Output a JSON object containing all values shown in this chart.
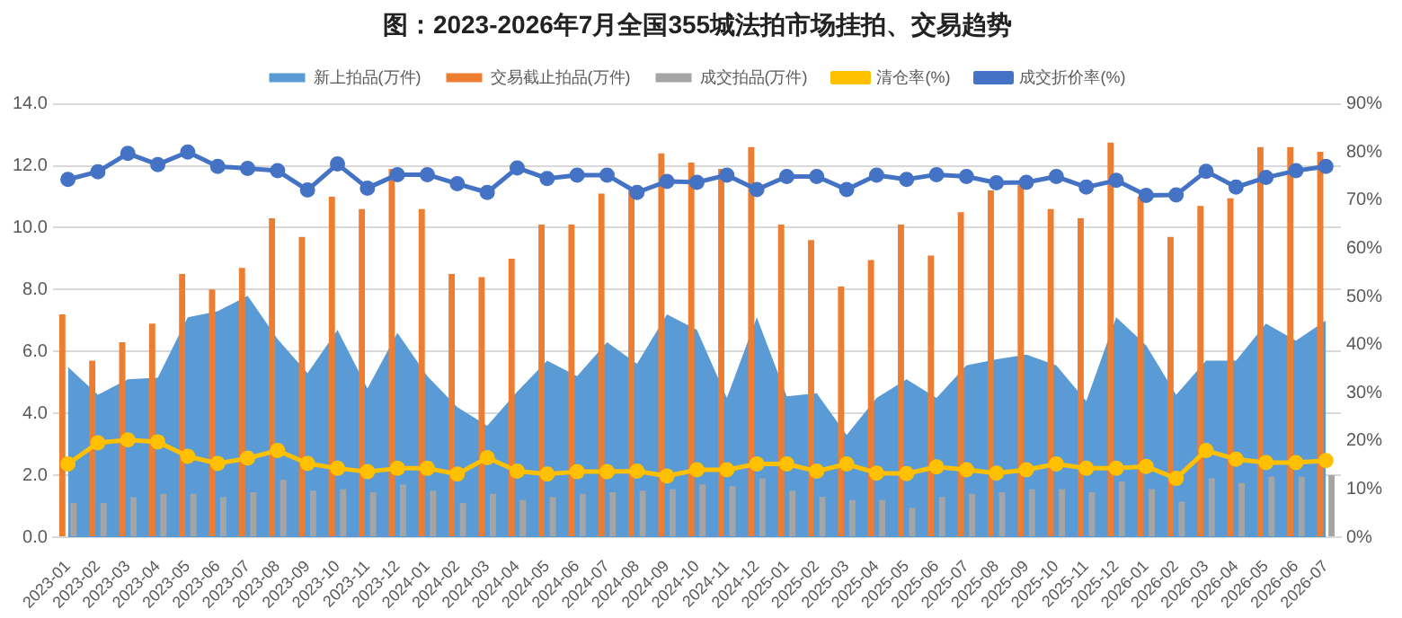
{
  "chart_data": {
    "type": "bar",
    "title": "图：2023-2026年7月全国355城法拍市场挂拍、交易趋势",
    "categories": [
      "2023-01",
      "2023-02",
      "2023-03",
      "2023-04",
      "2023-05",
      "2023-06",
      "2023-07",
      "2023-08",
      "2023-09",
      "2023-10",
      "2023-11",
      "2023-12",
      "2024-01",
      "2024-02",
      "2024-03",
      "2024-04",
      "2024-05",
      "2024-06",
      "2024-07",
      "2024-08",
      "2024-09",
      "2024-10",
      "2024-11",
      "2024-12",
      "2025-01",
      "2025-02",
      "2025-03",
      "2025-04",
      "2025-05",
      "2025-06",
      "2025-07",
      "2025-08",
      "2025-09",
      "2025-10",
      "2025-11",
      "2025-12",
      "2026-01",
      "2026-02",
      "2026-03",
      "2026-04",
      "2026-05",
      "2026-06",
      "2026-07"
    ],
    "series": [
      {
        "name": "新上拍品(万件)",
        "type": "area",
        "color": "#5b9bd5",
        "values": [
          5.5,
          4.6,
          5.1,
          5.15,
          7.1,
          7.3,
          7.8,
          6.4,
          5.3,
          6.7,
          4.8,
          6.6,
          5.2,
          4.2,
          3.6,
          4.7,
          5.7,
          5.2,
          6.3,
          5.6,
          7.2,
          6.7,
          4.5,
          7.1,
          4.55,
          4.65,
          3.3,
          4.5,
          5.1,
          4.5,
          5.55,
          5.75,
          5.9,
          5.55,
          4.4,
          7.1,
          6.2,
          4.6,
          5.7,
          5.7,
          6.9,
          6.35,
          7.0
        ]
      },
      {
        "name": "交易截止拍品(万件)",
        "color": "#ed7d31",
        "values": [
          7.2,
          5.7,
          6.3,
          6.9,
          8.5,
          8.0,
          8.7,
          10.3,
          9.7,
          11.0,
          10.6,
          11.9,
          10.6,
          8.5,
          8.4,
          9.0,
          10.1,
          10.1,
          11.1,
          11.2,
          12.4,
          12.1,
          11.9,
          12.6,
          10.1,
          9.6,
          8.1,
          8.95,
          10.1,
          9.1,
          10.5,
          11.2,
          11.4,
          10.6,
          10.3,
          12.75,
          11.0,
          9.7,
          10.7,
          10.95,
          12.6,
          12.6,
          12.45
        ]
      },
      {
        "name": "成交拍品(万件)",
        "color": "#a5a5a5",
        "values": [
          1.1,
          1.1,
          1.3,
          1.4,
          1.4,
          1.3,
          1.45,
          1.85,
          1.5,
          1.55,
          1.45,
          1.7,
          1.5,
          1.1,
          1.4,
          1.2,
          1.3,
          1.4,
          1.45,
          1.5,
          1.55,
          1.7,
          1.65,
          1.9,
          1.5,
          1.3,
          1.2,
          1.2,
          0.95,
          1.3,
          1.4,
          1.45,
          1.55,
          1.55,
          1.45,
          1.8,
          1.55,
          1.15,
          1.9,
          1.75,
          1.95,
          1.95,
          2.0
        ]
      },
      {
        "name": "清仓率(%)",
        "type": "line",
        "axis": "y2",
        "marker": "circle",
        "color": "#ffc000",
        "values": [
          15.2,
          19.6,
          20.2,
          19.8,
          16.8,
          15.3,
          16.4,
          18.0,
          15.3,
          14.3,
          13.6,
          14.3,
          14.3,
          13.1,
          16.5,
          13.7,
          13.1,
          13.6,
          13.6,
          13.7,
          12.7,
          14.0,
          14.0,
          15.2,
          15.2,
          13.7,
          15.2,
          13.3,
          13.2,
          14.6,
          14.0,
          13.3,
          14.0,
          15.2,
          14.3,
          14.3,
          14.7,
          12.2,
          18.0,
          16.2,
          15.5,
          15.5,
          15.9
        ]
      },
      {
        "name": "成交折价率(%)",
        "type": "line",
        "axis": "y2",
        "marker": "circle",
        "color": "#4472c4",
        "values": [
          74.3,
          75.9,
          79.7,
          77.4,
          80.0,
          77.0,
          76.6,
          76.1,
          72.1,
          77.5,
          72.5,
          75.3,
          75.3,
          73.4,
          71.6,
          76.7,
          74.5,
          75.2,
          75.2,
          71.6,
          73.9,
          73.7,
          75.2,
          72.2,
          74.9,
          74.9,
          72.2,
          75.2,
          74.3,
          75.3,
          74.9,
          73.6,
          73.7,
          74.9,
          72.7,
          74.1,
          71.0,
          71.1,
          76.0,
          72.7,
          74.7,
          76.1,
          77.0
        ]
      }
    ],
    "ylim": [
      0,
      14
    ],
    "yticks": [
      {
        "value": 0,
        "label": "0.0"
      },
      {
        "value": 2,
        "label": "2.0"
      },
      {
        "value": 4,
        "label": "4.0"
      },
      {
        "value": 6,
        "label": "6.0"
      },
      {
        "value": 8,
        "label": "8.0"
      },
      {
        "value": 10,
        "label": "10.0"
      },
      {
        "value": 12,
        "label": "12.0"
      },
      {
        "value": 14,
        "label": "14.0"
      }
    ],
    "y2lim": [
      0,
      90
    ],
    "y2ticks": [
      {
        "value": 0,
        "label": "0%"
      },
      {
        "value": 10,
        "label": "10%"
      },
      {
        "value": 20,
        "label": "20%"
      },
      {
        "value": 30,
        "label": "30%"
      },
      {
        "value": 40,
        "label": "40%"
      },
      {
        "value": 50,
        "label": "50%"
      },
      {
        "value": 60,
        "label": "60%"
      },
      {
        "value": 70,
        "label": "70%"
      },
      {
        "value": 80,
        "label": "80%"
      },
      {
        "value": 90,
        "label": "90%"
      }
    ],
    "grid": "y",
    "legend": "top"
  }
}
